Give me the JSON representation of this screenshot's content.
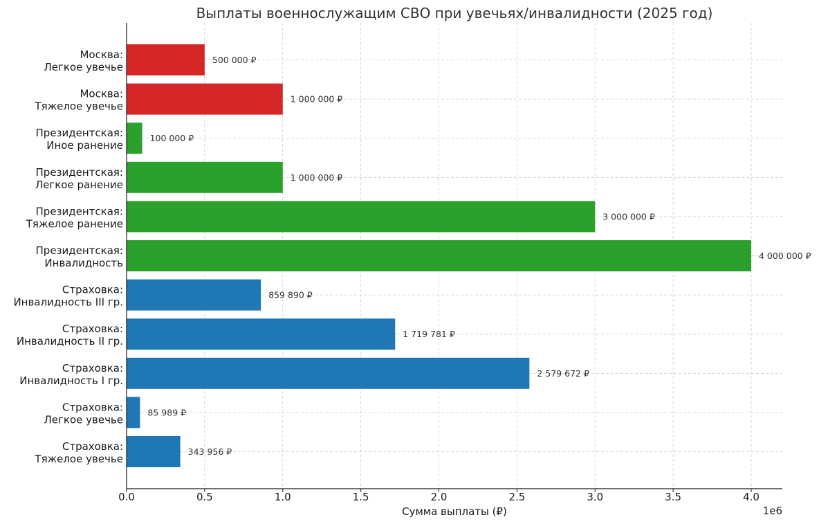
{
  "chart_data": {
    "type": "bar",
    "orientation": "horizontal",
    "title": "Выплаты военнослужащим СВО при увечьях/инвалидности (2025 год)",
    "xlabel": "Сумма выплаты (₽)",
    "x_offset_text": "1e6",
    "xlim": [
      0,
      4200000
    ],
    "xticks": [
      0,
      500000,
      1000000,
      1500000,
      2000000,
      2500000,
      3000000,
      3500000,
      4000000
    ],
    "xtick_labels": [
      "0.0",
      "0.5",
      "1.0",
      "1.5",
      "2.0",
      "2.5",
      "3.0",
      "3.5",
      "4.0"
    ],
    "grid": true,
    "colors": {
      "moscow": "#d62728",
      "presidential": "#2ca02c",
      "insurance": "#1f77b4"
    },
    "categories": [
      [
        "Москва:",
        "Легкое увечье"
      ],
      [
        "Москва:",
        "Тяжелое увечье"
      ],
      [
        "Президентская:",
        "Иное ранение"
      ],
      [
        "Президентская:",
        "Легкое ранение"
      ],
      [
        "Президентская:",
        "Тяжелое ранение"
      ],
      [
        "Президентская:",
        "Инвалидность"
      ],
      [
        "Страховка:",
        "Инвалидность III гр."
      ],
      [
        "Страховка:",
        "Инвалидность II гр."
      ],
      [
        "Страховка:",
        "Инвалидность I гр."
      ],
      [
        "Страховка:",
        "Легкое увечье"
      ],
      [
        "Страховка:",
        "Тяжелое увечье"
      ]
    ],
    "values": [
      500000,
      1000000,
      100000,
      1000000,
      3000000,
      4000000,
      859890,
      1719781,
      2579672,
      85989,
      343956
    ],
    "value_labels": [
      "500 000 ₽",
      "1 000 000 ₽",
      "100 000 ₽",
      "1 000 000 ₽",
      "3 000 000 ₽",
      "4 000 000 ₽",
      "859 890 ₽",
      "1 719 781 ₽",
      "2 579 672 ₽",
      "85 989 ₽",
      "343 956 ₽"
    ],
    "groups": [
      "moscow",
      "moscow",
      "presidential",
      "presidential",
      "presidential",
      "presidential",
      "insurance",
      "insurance",
      "insurance",
      "insurance",
      "insurance"
    ]
  }
}
